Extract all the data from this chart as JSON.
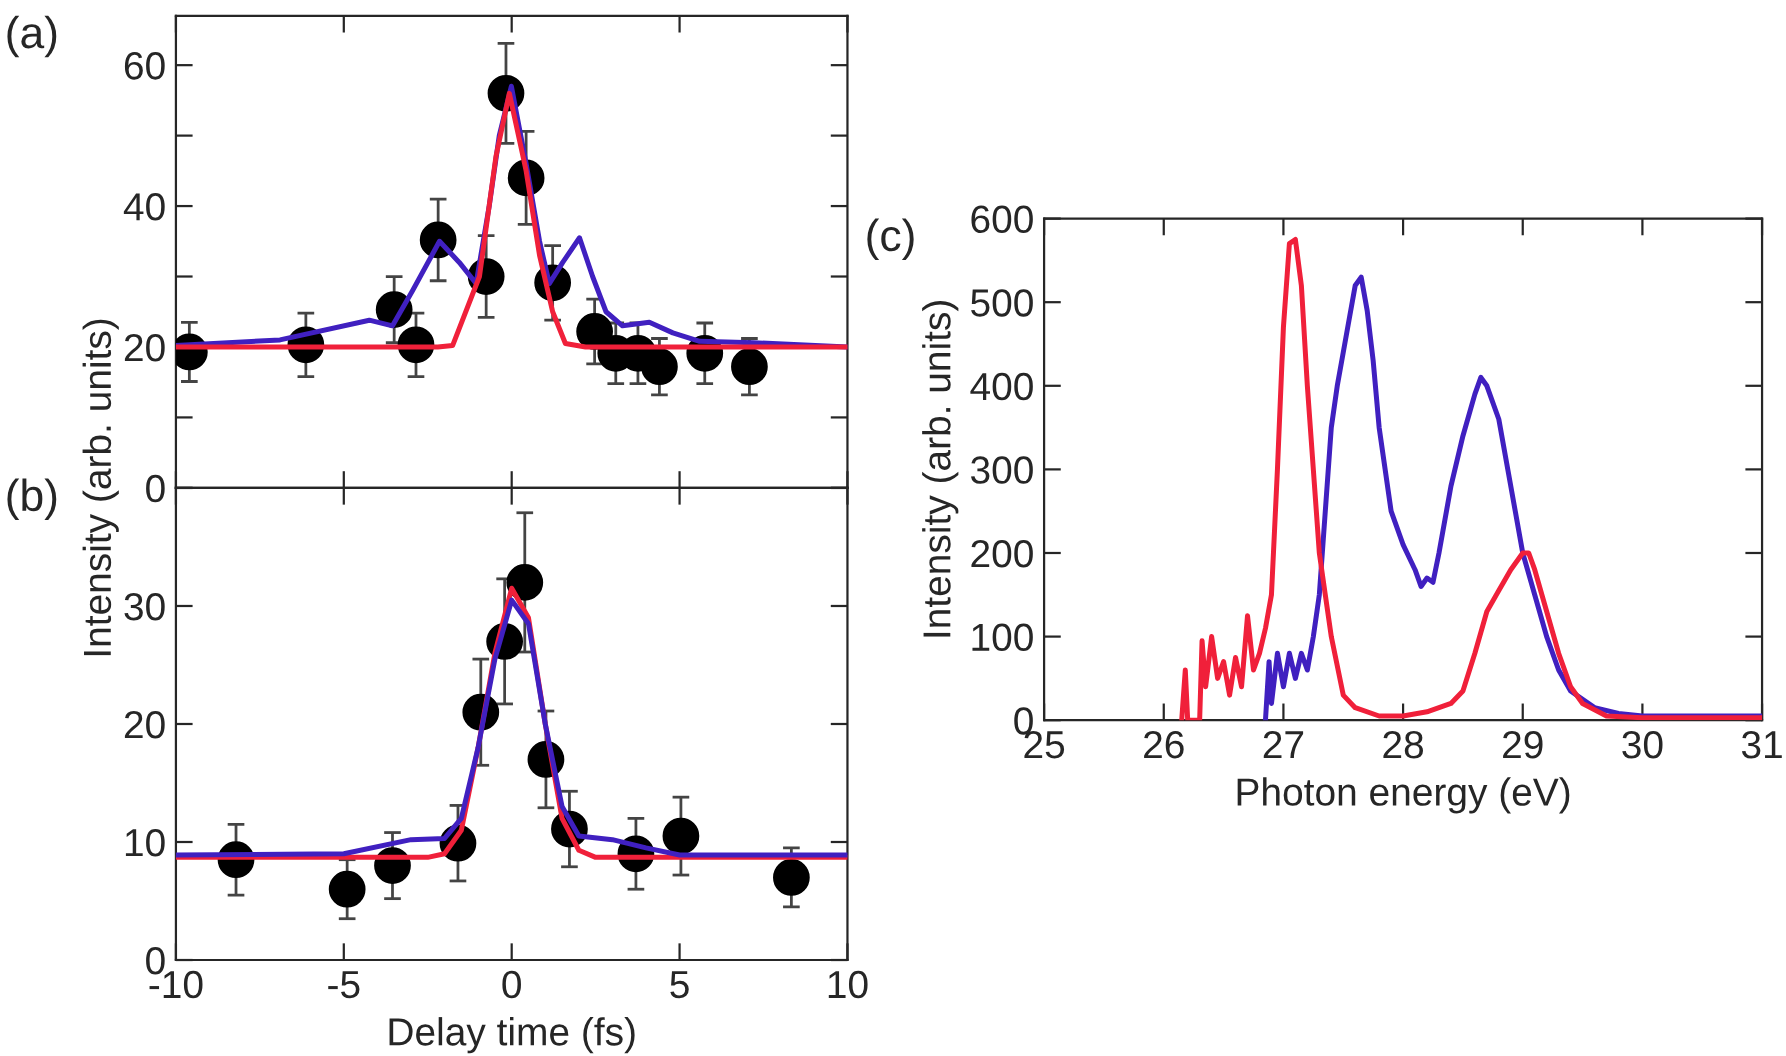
{
  "chart_data": [
    {
      "type": "scatter",
      "annotations": [
        "(a)"
      ],
      "xlim": [
        -10,
        10
      ],
      "ylim": [
        0,
        67
      ],
      "xticks": [
        -10,
        -5,
        0,
        5,
        10
      ],
      "yticks": [
        0,
        {
          "value": 10,
          "label": null
        },
        20,
        {
          "value": 30,
          "label": null
        },
        40,
        {
          "value": 50,
          "label": null
        },
        60
      ],
      "tick_labels": "y",
      "grid": false,
      "legend": false,
      "series": [
        {
          "color": "#000000",
          "marker": "circle",
          "x": [
            -9.6,
            -6.13,
            -3.5,
            -2.85,
            -2.19,
            -0.76,
            -0.17,
            0.43,
            1.22,
            2.47,
            3.1,
            3.76,
            4.4,
            5.75,
            7.08
          ],
          "values": [
            19.3,
            20.3,
            25.3,
            20.3,
            35.2,
            30,
            56,
            44,
            29.1,
            22.2,
            19.1,
            19.1,
            17.2,
            19.1,
            17.2
          ],
          "errors": [
            4.2,
            4.5,
            4.7,
            4.5,
            5.8,
            5.8,
            7.1,
            6.6,
            5.3,
            4.6,
            4.3,
            4.3,
            4,
            4.3,
            4
          ]
        },
        {
          "type": "line",
          "color": "#4020c0",
          "x": [
            -10,
            -6.9,
            -4.24,
            -3.55,
            -2.95,
            -2.15,
            -1.56,
            -1.06,
            -0.67,
            -0.37,
            -0.01,
            0.43,
            0.83,
            1.12,
            1.52,
            2.02,
            2.41,
            2.81,
            3.3,
            4.1,
            4.8,
            5.6,
            7.2,
            10
          ],
          "values": [
            20.2,
            21,
            23.8,
            23,
            28,
            35,
            32,
            29,
            40,
            50,
            57,
            46,
            35,
            29,
            32,
            35.5,
            30,
            25,
            23,
            23.5,
            22,
            20.8,
            20.6,
            20
          ]
        },
        {
          "type": "line",
          "color": "#f0203a",
          "x": [
            -10,
            -2.2,
            -1.76,
            -0.96,
            -0.47,
            -0.07,
            0.43,
            0.83,
            1.22,
            1.6,
            2.2,
            10
          ],
          "values": [
            20,
            20,
            20.2,
            30,
            47,
            56,
            45,
            33,
            25,
            20.5,
            20,
            20
          ]
        }
      ]
    },
    {
      "type": "scatter",
      "annotations": [
        "(b)"
      ],
      "xlabel": "Delay time (fs)",
      "ylabel": "Intensity (arb. units)",
      "xlim": [
        -10,
        10
      ],
      "ylim": [
        0,
        40
      ],
      "xticks": [
        -10,
        -5,
        0,
        5,
        10
      ],
      "yticks": [
        0,
        10,
        20,
        30,
        {
          "value": 40,
          "label": null
        }
      ],
      "grid": false,
      "legend": false,
      "series": [
        {
          "color": "#000000",
          "marker": "circle",
          "x": [
            -8.21,
            -4.9,
            -3.55,
            -1.6,
            -0.92,
            -0.21,
            0.39,
            1.02,
            1.72,
            3.7,
            5.04,
            8.33
          ],
          "values": [
            8.5,
            6.0,
            8.0,
            9.9,
            21,
            27,
            32,
            17,
            11.1,
            9.0,
            10.5,
            7.0
          ],
          "errors": [
            3,
            2.5,
            2.8,
            3.2,
            4.5,
            5.3,
            5.9,
            4.1,
            3.2,
            3,
            3.3,
            2.5
          ]
        },
        {
          "type": "line",
          "color": "#f0203a",
          "x": [
            -10,
            -2.5,
            -2,
            -1.5,
            -1,
            -0.5,
            0,
            0.5,
            1,
            1.5,
            2,
            2.5,
            10
          ],
          "values": [
            8.7,
            8.7,
            9,
            11,
            18,
            26,
            31.5,
            29,
            20,
            12,
            9.3,
            8.7,
            8.7
          ]
        },
        {
          "type": "line",
          "color": "#4020c0",
          "x": [
            -10,
            -5,
            -3,
            -2,
            -1.5,
            -1,
            -0.5,
            0,
            0.5,
            1,
            1.5,
            2,
            3,
            4,
            5,
            10
          ],
          "values": [
            8.9,
            9.0,
            10.2,
            10.3,
            12,
            18,
            25.5,
            30.5,
            28.5,
            20,
            13,
            10.5,
            10.2,
            9.5,
            8.9,
            8.9
          ]
        }
      ]
    },
    {
      "type": "line",
      "annotations": [
        "(c)"
      ],
      "xlabel": "Photon energy (eV)",
      "ylabel": "Intensity (arb. units)",
      "xlim": [
        25,
        31
      ],
      "ylim": [
        0,
        600
      ],
      "xticks": [
        25,
        26,
        27,
        28,
        29,
        30,
        31
      ],
      "yticks": [
        0,
        100,
        200,
        300,
        400,
        500,
        600
      ],
      "grid": false,
      "legend": false,
      "series": [
        {
          "color": "#4020c0",
          "x": [
            26.85,
            26.88,
            26.9,
            26.95,
            27.0,
            27.05,
            27.1,
            27.15,
            27.2,
            27.25,
            27.3,
            27.35,
            27.4,
            27.45,
            27.5,
            27.55,
            27.6,
            27.65,
            27.7,
            27.75,
            27.8,
            27.85,
            27.9,
            28.0,
            28.1,
            28.15,
            28.2,
            28.25,
            28.3,
            28.4,
            28.5,
            28.6,
            28.65,
            28.7,
            28.8,
            28.9,
            29.0,
            29.1,
            29.2,
            29.3,
            29.4,
            29.6,
            29.8,
            30,
            30.5,
            31
          ],
          "values": [
            0,
            70,
            20,
            80,
            40,
            80,
            50,
            80,
            60,
            100,
            150,
            250,
            350,
            400,
            440,
            480,
            520,
            530,
            490,
            430,
            350,
            300,
            250,
            210,
            180,
            160,
            170,
            165,
            200,
            280,
            340,
            390,
            410,
            400,
            360,
            280,
            200,
            150,
            100,
            60,
            35,
            15,
            8,
            5,
            5,
            5
          ]
        },
        {
          "color": "#f0203a",
          "x": [
            26.15,
            26.18,
            26.2,
            26.3,
            26.32,
            26.35,
            26.4,
            26.45,
            26.5,
            26.55,
            26.6,
            26.65,
            26.7,
            26.75,
            26.8,
            26.85,
            26.9,
            26.95,
            27.0,
            27.05,
            27.1,
            27.15,
            27.2,
            27.3,
            27.35,
            27.4,
            27.5,
            27.6,
            27.8,
            28.0,
            28.2,
            28.4,
            28.5,
            28.6,
            28.7,
            28.8,
            28.9,
            29.0,
            29.05,
            29.1,
            29.2,
            29.3,
            29.4,
            29.5,
            29.7,
            30,
            31
          ],
          "values": [
            0,
            60,
            0,
            0,
            95,
            40,
            100,
            50,
            70,
            30,
            75,
            40,
            125,
            60,
            80,
            110,
            150,
            300,
            470,
            570,
            575,
            520,
            400,
            200,
            150,
            100,
            30,
            15,
            5,
            5,
            10,
            20,
            35,
            80,
            130,
            155,
            180,
            200,
            200,
            180,
            130,
            80,
            40,
            20,
            5,
            3,
            3
          ]
        }
      ]
    }
  ]
}
